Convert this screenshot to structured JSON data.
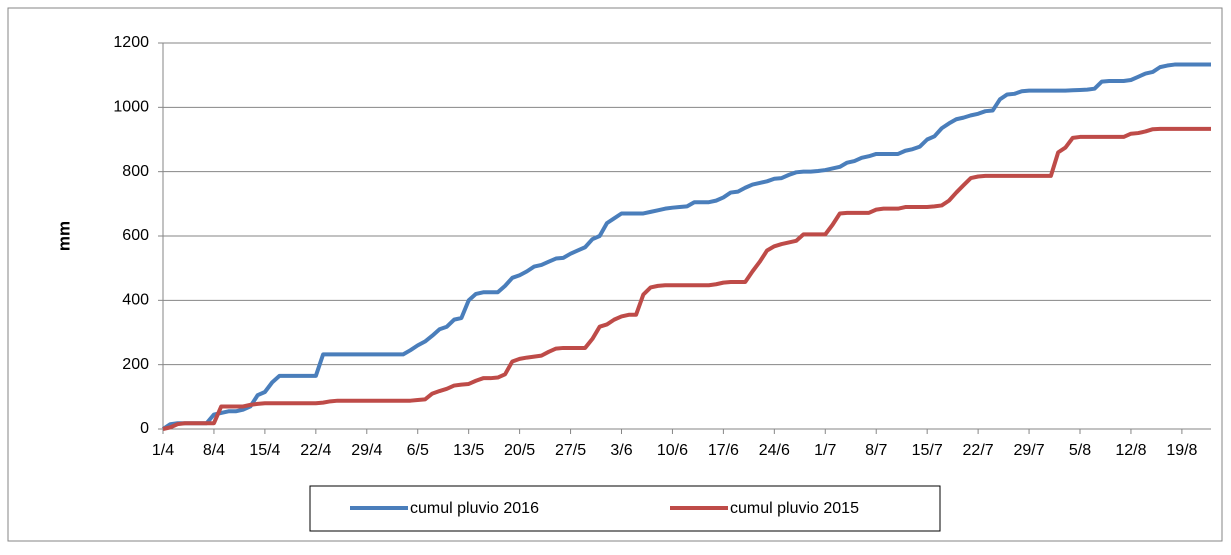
{
  "chart_data": {
    "type": "line",
    "y_label": "mm",
    "categories": [
      "1/4",
      null,
      null,
      null,
      null,
      null,
      null,
      "8/4",
      null,
      null,
      null,
      null,
      null,
      null,
      "15/4",
      null,
      null,
      null,
      null,
      null,
      null,
      "22/4",
      null,
      null,
      null,
      null,
      null,
      null,
      "29/4",
      null,
      null,
      null,
      null,
      null,
      null,
      "6/5",
      null,
      null,
      null,
      null,
      null,
      null,
      "13/5",
      null,
      null,
      null,
      null,
      null,
      null,
      "20/5",
      null,
      null,
      null,
      null,
      null,
      null,
      "27/5",
      null,
      null,
      null,
      null,
      null,
      null,
      "3/6",
      null,
      null,
      null,
      null,
      null,
      null,
      "10/6",
      null,
      null,
      null,
      null,
      null,
      null,
      "17/6",
      null,
      null,
      null,
      null,
      null,
      null,
      "24/6",
      null,
      null,
      null,
      null,
      null,
      null,
      "1/7",
      null,
      null,
      null,
      null,
      null,
      null,
      "8/7",
      null,
      null,
      null,
      null,
      null,
      null,
      "15/7",
      null,
      null,
      null,
      null,
      null,
      null,
      "22/7",
      null,
      null,
      null,
      null,
      null,
      null,
      "29/7",
      null,
      null,
      null,
      null,
      null,
      null,
      "5/8",
      null,
      null,
      null,
      null,
      null,
      null,
      "12/8",
      null,
      null,
      null,
      null,
      null,
      null,
      "19/8",
      null,
      null,
      null,
      null
    ],
    "series": [
      {
        "name": "cumul pluvio 2016",
        "color": "#4a7ebb",
        "values": [
          0,
          15,
          18,
          18,
          18,
          18,
          18,
          45,
          50,
          55,
          55,
          60,
          70,
          105,
          115,
          145,
          165,
          165,
          165,
          165,
          165,
          165,
          232,
          232,
          232,
          232,
          232,
          232,
          232,
          232,
          232,
          232,
          232,
          232,
          245,
          260,
          272,
          290,
          310,
          318,
          340,
          345,
          400,
          420,
          425,
          425,
          425,
          445,
          470,
          478,
          490,
          505,
          510,
          520,
          530,
          532,
          545,
          555,
          565,
          590,
          600,
          640,
          655,
          670,
          670,
          670,
          670,
          675,
          680,
          685,
          688,
          690,
          692,
          705,
          705,
          705,
          710,
          720,
          735,
          738,
          750,
          760,
          765,
          770,
          778,
          780,
          790,
          798,
          800,
          800,
          802,
          805,
          810,
          815,
          828,
          833,
          843,
          848,
          855,
          855,
          855,
          855,
          865,
          870,
          878,
          900,
          910,
          935,
          950,
          963,
          968,
          975,
          980,
          988,
          990,
          1025,
          1040,
          1042,
          1050,
          1052,
          1052,
          1052,
          1052,
          1052,
          1052,
          1053,
          1054,
          1055,
          1058,
          1080,
          1082,
          1082,
          1082,
          1085,
          1095,
          1105,
          1110,
          1125,
          1130,
          1133,
          1133,
          1133,
          1133,
          1133,
          1133
        ]
      },
      {
        "name": "cumul pluvio 2015",
        "color": "#be4b48",
        "values": [
          0,
          5,
          15,
          18,
          18,
          18,
          18,
          18,
          70,
          70,
          70,
          70,
          75,
          78,
          80,
          80,
          80,
          80,
          80,
          80,
          80,
          80,
          82,
          86,
          88,
          88,
          88,
          88,
          88,
          88,
          88,
          88,
          88,
          88,
          88,
          90,
          92,
          110,
          118,
          125,
          135,
          138,
          140,
          150,
          158,
          158,
          160,
          170,
          210,
          218,
          222,
          225,
          228,
          240,
          250,
          252,
          252,
          252,
          252,
          280,
          318,
          325,
          340,
          350,
          355,
          355,
          418,
          440,
          445,
          447,
          447,
          447,
          447,
          447,
          447,
          447,
          450,
          455,
          457,
          457,
          457,
          490,
          520,
          555,
          568,
          575,
          580,
          585,
          605,
          605,
          605,
          605,
          635,
          670,
          672,
          672,
          672,
          672,
          682,
          685,
          685,
          685,
          690,
          690,
          690,
          690,
          692,
          695,
          710,
          735,
          758,
          780,
          785,
          787,
          787,
          787,
          787,
          787,
          787,
          787,
          787,
          787,
          787,
          860,
          875,
          905,
          908,
          908,
          908,
          908,
          908,
          908,
          908,
          918,
          920,
          925,
          932,
          933,
          933,
          933,
          933,
          933,
          933,
          933,
          933
        ]
      }
    ],
    "ylim": [
      0,
      1200
    ],
    "yticks": [
      0,
      200,
      400,
      600,
      800,
      1000,
      1200
    ],
    "grid": true,
    "legend": "bottom"
  }
}
